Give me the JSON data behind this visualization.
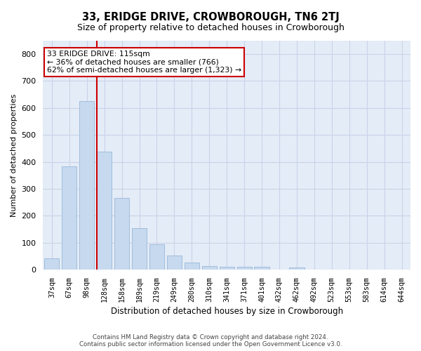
{
  "title": "33, ERIDGE DRIVE, CROWBOROUGH, TN6 2TJ",
  "subtitle": "Size of property relative to detached houses in Crowborough",
  "xlabel": "Distribution of detached houses by size in Crowborough",
  "ylabel": "Number of detached properties",
  "bar_labels": [
    "37sqm",
    "67sqm",
    "98sqm",
    "128sqm",
    "158sqm",
    "189sqm",
    "219sqm",
    "249sqm",
    "280sqm",
    "310sqm",
    "341sqm",
    "371sqm",
    "401sqm",
    "432sqm",
    "462sqm",
    "492sqm",
    "523sqm",
    "553sqm",
    "583sqm",
    "614sqm",
    "644sqm"
  ],
  "bar_values": [
    42,
    383,
    625,
    438,
    265,
    155,
    95,
    52,
    28,
    15,
    10,
    10,
    10,
    0,
    8,
    0,
    0,
    0,
    0,
    0,
    0
  ],
  "bar_color": "#c6d9ee",
  "bar_edge_color": "#9ab8d8",
  "annotation_text": "33 ERIDGE DRIVE: 115sqm\n← 36% of detached houses are smaller (766)\n62% of semi-detached houses are larger (1,323) →",
  "annotation_box_color": "#ffffff",
  "annotation_box_edge": "#cc0000",
  "red_line_color": "#cc0000",
  "ylim": [
    0,
    850
  ],
  "yticks": [
    0,
    100,
    200,
    300,
    400,
    500,
    600,
    700,
    800
  ],
  "grid_color": "#c8d4e8",
  "bg_color": "#e4ecf7",
  "footer_line1": "Contains HM Land Registry data © Crown copyright and database right 2024.",
  "footer_line2": "Contains public sector information licensed under the Open Government Licence v3.0.",
  "title_fontsize": 10.5,
  "subtitle_fontsize": 9
}
